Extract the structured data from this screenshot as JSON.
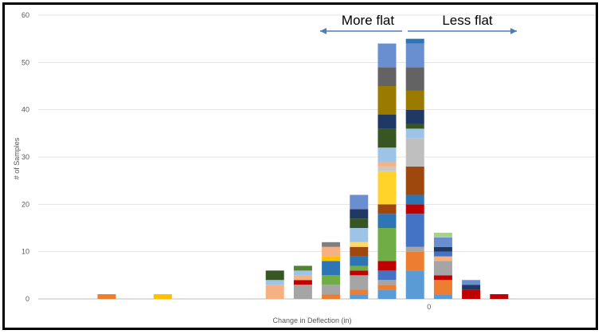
{
  "chart_data": {
    "type": "bar",
    "stacked": true,
    "xlabel": "Change in Deflection (in)",
    "ylabel": "# of Samples",
    "ylim": [
      0,
      60
    ],
    "yticks": [
      0,
      10,
      20,
      30,
      40,
      50,
      60
    ],
    "x_tick_labels": [
      {
        "after_category": 12,
        "label": "0"
      }
    ],
    "grid": "horizontal",
    "annotations": [
      {
        "text": "More flat",
        "arrow": "left"
      },
      {
        "text": "Less flat",
        "arrow": "right"
      }
    ],
    "categories": [
      "",
      "",
      "",
      "",
      "",
      "",
      "",
      "",
      "",
      "",
      "",
      "",
      "",
      "",
      "",
      "",
      ""
    ],
    "stacks": [
      [
        {
          "v": 1,
          "c": "#ed7d31"
        }
      ],
      [],
      [
        {
          "v": 1,
          "c": "#ffc000"
        }
      ],
      [],
      [],
      [],
      [
        {
          "v": 3,
          "c": "#f4b183"
        },
        {
          "v": 1,
          "c": "#9dc3e6"
        },
        {
          "v": 2,
          "c": "#375623"
        }
      ],
      [
        {
          "v": 3,
          "c": "#a5a5a5"
        },
        {
          "v": 1,
          "c": "#c00000"
        },
        {
          "v": 1,
          "c": "#f4b183"
        },
        {
          "v": 1,
          "c": "#9dc3e6"
        },
        {
          "v": 1,
          "c": "#548235"
        }
      ],
      [
        {
          "v": 1,
          "c": "#ed7d31"
        },
        {
          "v": 2,
          "c": "#a5a5a5"
        },
        {
          "v": 2,
          "c": "#70ad47"
        },
        {
          "v": 3,
          "c": "#2e75b6"
        },
        {
          "v": 1,
          "c": "#ffc000"
        },
        {
          "v": 2,
          "c": "#f4b183"
        },
        {
          "v": 1,
          "c": "#7f7f7f"
        }
      ],
      [
        {
          "v": 1,
          "c": "#5b9bd5"
        },
        {
          "v": 1,
          "c": "#ed7d31"
        },
        {
          "v": 3,
          "c": "#a5a5a5"
        },
        {
          "v": 1,
          "c": "#c00000"
        },
        {
          "v": 1,
          "c": "#70ad47"
        },
        {
          "v": 2,
          "c": "#2e75b6"
        },
        {
          "v": 2,
          "c": "#9e480e"
        },
        {
          "v": 1,
          "c": "#ffd966"
        },
        {
          "v": 3,
          "c": "#9dc3e6"
        },
        {
          "v": 2,
          "c": "#375623"
        },
        {
          "v": 2,
          "c": "#203864"
        },
        {
          "v": 3,
          "c": "#6a8fd0"
        }
      ],
      [
        {
          "v": 2,
          "c": "#5b9bd5"
        },
        {
          "v": 1,
          "c": "#ed7d31"
        },
        {
          "v": 1,
          "c": "#a5a5a5"
        },
        {
          "v": 2,
          "c": "#4472c4"
        },
        {
          "v": 2,
          "c": "#c00000"
        },
        {
          "v": 7,
          "c": "#70ad47"
        },
        {
          "v": 3,
          "c": "#2e75b6"
        },
        {
          "v": 2,
          "c": "#9e480e"
        },
        {
          "v": 7,
          "c": "#ffd32a"
        },
        {
          "v": 1,
          "c": "#c9c9c9"
        },
        {
          "v": 1,
          "c": "#f4b183"
        },
        {
          "v": 3,
          "c": "#9dc3e6"
        },
        {
          "v": 4,
          "c": "#375623"
        },
        {
          "v": 3,
          "c": "#203864"
        },
        {
          "v": 6,
          "c": "#9a7b00"
        },
        {
          "v": 4,
          "c": "#636363"
        },
        {
          "v": 5,
          "c": "#6a8fd0"
        }
      ],
      [
        {
          "v": 6,
          "c": "#5b9bd5"
        },
        {
          "v": 4,
          "c": "#ed7d31"
        },
        {
          "v": 1,
          "c": "#a5a5a5"
        },
        {
          "v": 7,
          "c": "#4472c4"
        },
        {
          "v": 2,
          "c": "#c00000"
        },
        {
          "v": 2,
          "c": "#2e75b6"
        },
        {
          "v": 6,
          "c": "#9e480e"
        },
        {
          "v": 6,
          "c": "#bfbfbf"
        },
        {
          "v": 2,
          "c": "#9dc3e6"
        },
        {
          "v": 1,
          "c": "#375623"
        },
        {
          "v": 3,
          "c": "#203864"
        },
        {
          "v": 4,
          "c": "#9a7b00"
        },
        {
          "v": 5,
          "c": "#636363"
        },
        {
          "v": 5,
          "c": "#6a8fd0"
        },
        {
          "v": 1,
          "c": "#2e75b6"
        }
      ],
      [
        {
          "v": 1,
          "c": "#5b9bd5"
        },
        {
          "v": 3,
          "c": "#ed7d31"
        },
        {
          "v": 1,
          "c": "#c00000"
        },
        {
          "v": 3,
          "c": "#a5a5a5"
        },
        {
          "v": 1,
          "c": "#f4b183"
        },
        {
          "v": 1,
          "c": "#4472c4"
        },
        {
          "v": 1,
          "c": "#203864"
        },
        {
          "v": 2,
          "c": "#6a8fd0"
        },
        {
          "v": 1,
          "c": "#a9d18e"
        }
      ],
      [
        {
          "v": 2,
          "c": "#c00000"
        },
        {
          "v": 1,
          "c": "#203864"
        },
        {
          "v": 1,
          "c": "#6a8fd0"
        }
      ],
      [
        {
          "v": 1,
          "c": "#c00000"
        }
      ],
      [],
      []
    ]
  }
}
